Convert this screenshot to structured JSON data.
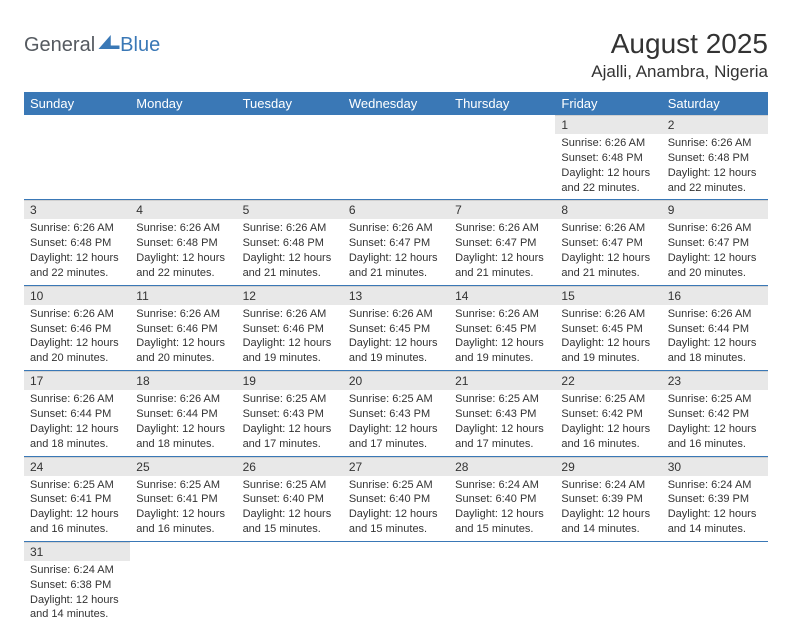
{
  "logo": {
    "part1": "General",
    "part2": "Blue"
  },
  "title": "August 2025",
  "location": "Ajalli, Anambra, Nigeria",
  "colors": {
    "header_bg": "#3a78b6",
    "header_fg": "#ffffff",
    "daynum_bg": "#e8e8e8",
    "row_divider": "#3a78b6",
    "text": "#333333",
    "page_bg": "#ffffff"
  },
  "weekdays": [
    "Sunday",
    "Monday",
    "Tuesday",
    "Wednesday",
    "Thursday",
    "Friday",
    "Saturday"
  ],
  "grid": [
    [
      null,
      null,
      null,
      null,
      null,
      {
        "n": "1",
        "sr": "6:26 AM",
        "ss": "6:48 PM",
        "dl": "12 hours and 22 minutes."
      },
      {
        "n": "2",
        "sr": "6:26 AM",
        "ss": "6:48 PM",
        "dl": "12 hours and 22 minutes."
      }
    ],
    [
      {
        "n": "3",
        "sr": "6:26 AM",
        "ss": "6:48 PM",
        "dl": "12 hours and 22 minutes."
      },
      {
        "n": "4",
        "sr": "6:26 AM",
        "ss": "6:48 PM",
        "dl": "12 hours and 22 minutes."
      },
      {
        "n": "5",
        "sr": "6:26 AM",
        "ss": "6:48 PM",
        "dl": "12 hours and 21 minutes."
      },
      {
        "n": "6",
        "sr": "6:26 AM",
        "ss": "6:47 PM",
        "dl": "12 hours and 21 minutes."
      },
      {
        "n": "7",
        "sr": "6:26 AM",
        "ss": "6:47 PM",
        "dl": "12 hours and 21 minutes."
      },
      {
        "n": "8",
        "sr": "6:26 AM",
        "ss": "6:47 PM",
        "dl": "12 hours and 21 minutes."
      },
      {
        "n": "9",
        "sr": "6:26 AM",
        "ss": "6:47 PM",
        "dl": "12 hours and 20 minutes."
      }
    ],
    [
      {
        "n": "10",
        "sr": "6:26 AM",
        "ss": "6:46 PM",
        "dl": "12 hours and 20 minutes."
      },
      {
        "n": "11",
        "sr": "6:26 AM",
        "ss": "6:46 PM",
        "dl": "12 hours and 20 minutes."
      },
      {
        "n": "12",
        "sr": "6:26 AM",
        "ss": "6:46 PM",
        "dl": "12 hours and 19 minutes."
      },
      {
        "n": "13",
        "sr": "6:26 AM",
        "ss": "6:45 PM",
        "dl": "12 hours and 19 minutes."
      },
      {
        "n": "14",
        "sr": "6:26 AM",
        "ss": "6:45 PM",
        "dl": "12 hours and 19 minutes."
      },
      {
        "n": "15",
        "sr": "6:26 AM",
        "ss": "6:45 PM",
        "dl": "12 hours and 19 minutes."
      },
      {
        "n": "16",
        "sr": "6:26 AM",
        "ss": "6:44 PM",
        "dl": "12 hours and 18 minutes."
      }
    ],
    [
      {
        "n": "17",
        "sr": "6:26 AM",
        "ss": "6:44 PM",
        "dl": "12 hours and 18 minutes."
      },
      {
        "n": "18",
        "sr": "6:26 AM",
        "ss": "6:44 PM",
        "dl": "12 hours and 18 minutes."
      },
      {
        "n": "19",
        "sr": "6:25 AM",
        "ss": "6:43 PM",
        "dl": "12 hours and 17 minutes."
      },
      {
        "n": "20",
        "sr": "6:25 AM",
        "ss": "6:43 PM",
        "dl": "12 hours and 17 minutes."
      },
      {
        "n": "21",
        "sr": "6:25 AM",
        "ss": "6:43 PM",
        "dl": "12 hours and 17 minutes."
      },
      {
        "n": "22",
        "sr": "6:25 AM",
        "ss": "6:42 PM",
        "dl": "12 hours and 16 minutes."
      },
      {
        "n": "23",
        "sr": "6:25 AM",
        "ss": "6:42 PM",
        "dl": "12 hours and 16 minutes."
      }
    ],
    [
      {
        "n": "24",
        "sr": "6:25 AM",
        "ss": "6:41 PM",
        "dl": "12 hours and 16 minutes."
      },
      {
        "n": "25",
        "sr": "6:25 AM",
        "ss": "6:41 PM",
        "dl": "12 hours and 16 minutes."
      },
      {
        "n": "26",
        "sr": "6:25 AM",
        "ss": "6:40 PM",
        "dl": "12 hours and 15 minutes."
      },
      {
        "n": "27",
        "sr": "6:25 AM",
        "ss": "6:40 PM",
        "dl": "12 hours and 15 minutes."
      },
      {
        "n": "28",
        "sr": "6:24 AM",
        "ss": "6:40 PM",
        "dl": "12 hours and 15 minutes."
      },
      {
        "n": "29",
        "sr": "6:24 AM",
        "ss": "6:39 PM",
        "dl": "12 hours and 14 minutes."
      },
      {
        "n": "30",
        "sr": "6:24 AM",
        "ss": "6:39 PM",
        "dl": "12 hours and 14 minutes."
      }
    ],
    [
      {
        "n": "31",
        "sr": "6:24 AM",
        "ss": "6:38 PM",
        "dl": "12 hours and 14 minutes."
      },
      null,
      null,
      null,
      null,
      null,
      null
    ]
  ],
  "labels": {
    "sunrise": "Sunrise:",
    "sunset": "Sunset:",
    "daylight": "Daylight:"
  }
}
